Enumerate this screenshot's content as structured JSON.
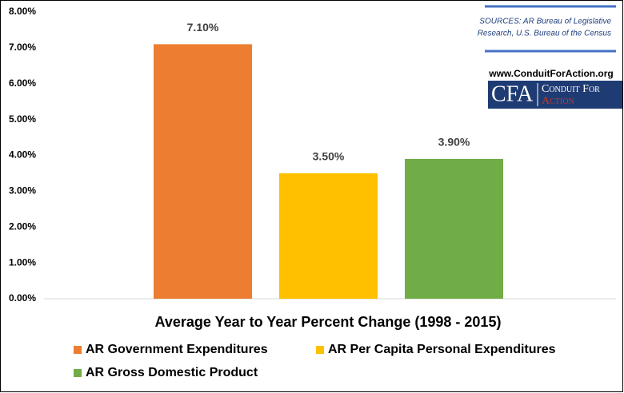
{
  "chart_data": {
    "type": "bar",
    "x_axis_label": "Average Year to Year Percent Change (1998 - 2015)",
    "categories": [
      null
    ],
    "series": [
      {
        "name": "AR Government Expenditures",
        "color": "#ed7d31",
        "values": [
          7.1
        ],
        "value_labels": [
          "7.10%"
        ]
      },
      {
        "name": "AR Per Capita Personal Expenditures",
        "color": "#ffc000",
        "values": [
          3.5
        ],
        "value_labels": [
          "3.50%"
        ]
      },
      {
        "name": "AR Gross Domestic Product",
        "color": "#70ad47",
        "values": [
          3.9
        ],
        "value_labels": [
          "3.90%"
        ]
      }
    ],
    "ylim": [
      0,
      8
    ],
    "yticks": [
      {
        "value": 0,
        "label": "0.00%"
      },
      {
        "value": 1,
        "label": "1.00%"
      },
      {
        "value": 2,
        "label": "2.00%"
      },
      {
        "value": 3,
        "label": "3.00%"
      },
      {
        "value": 4,
        "label": "4.00%"
      },
      {
        "value": 5,
        "label": "5.00%"
      },
      {
        "value": 6,
        "label": "6.00%"
      },
      {
        "value": 7,
        "label": "7.00%"
      },
      {
        "value": 8,
        "label": "8.00%"
      }
    ],
    "grid": false,
    "legend": "bottom",
    "annotations": {
      "sources_line1": "SOURCES: AR Bureau of Legislative",
      "sources_line2": "Research, U.S. Bureau of the Census",
      "logo_url": "www.ConduitForAction.org",
      "logo_mark": "CFA",
      "logo_name1": "Conduit For",
      "logo_name2": "Action"
    }
  }
}
